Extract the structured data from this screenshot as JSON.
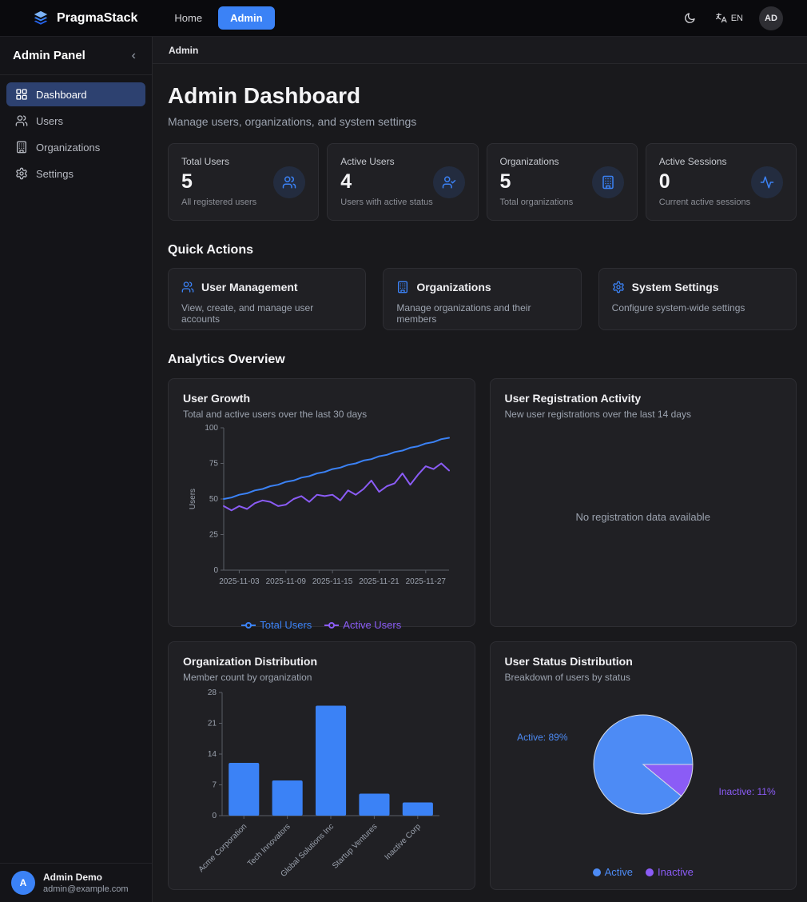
{
  "navbar": {
    "brand": "PragmaStack",
    "links": [
      {
        "label": "Home"
      },
      {
        "label": "Admin"
      }
    ],
    "lang": "EN",
    "avatar": "AD"
  },
  "sidebar": {
    "title": "Admin Panel",
    "collapse_icon": "‹",
    "items": [
      {
        "label": "Dashboard"
      },
      {
        "label": "Users"
      },
      {
        "label": "Organizations"
      },
      {
        "label": "Settings"
      }
    ],
    "user": {
      "initial": "A",
      "name": "Admin Demo",
      "email": "admin@example.com"
    }
  },
  "breadcrumb": "Admin",
  "page": {
    "title": "Admin Dashboard",
    "subtitle": "Manage users, organizations, and system settings"
  },
  "stats": [
    {
      "label": "Total Users",
      "value": "5",
      "desc": "All registered users",
      "icon": "users-icon"
    },
    {
      "label": "Active Users",
      "value": "4",
      "desc": "Users with active status",
      "icon": "user-check-icon"
    },
    {
      "label": "Organizations",
      "value": "5",
      "desc": "Total organizations",
      "icon": "building-icon"
    },
    {
      "label": "Active Sessions",
      "value": "0",
      "desc": "Current active sessions",
      "icon": "activity-icon"
    }
  ],
  "quick_actions": {
    "heading": "Quick Actions",
    "cards": [
      {
        "title": "User Management",
        "desc": "View, create, and manage user accounts",
        "icon": "users-icon"
      },
      {
        "title": "Organizations",
        "desc": "Manage organizations and their members",
        "icon": "building-icon"
      },
      {
        "title": "System Settings",
        "desc": "Configure system-wide settings",
        "icon": "gear-icon"
      }
    ]
  },
  "analytics": {
    "heading": "Analytics Overview",
    "cards": [
      {
        "title": "User Growth",
        "subtitle": "Total and active users over the last 30 days"
      },
      {
        "title": "User Registration Activity",
        "subtitle": "New user registrations over the last 14 days",
        "empty": "No registration data available"
      },
      {
        "title": "Organization Distribution",
        "subtitle": "Member count by organization"
      },
      {
        "title": "User Status Distribution",
        "subtitle": "Breakdown of users by status"
      }
    ]
  },
  "colors": {
    "accent": "#3b82f6",
    "purple": "#8b5cf6",
    "pie_blue": "#4d8bf5",
    "active_nav": "#2d4170"
  },
  "chart_data": [
    {
      "type": "line",
      "title": "User Growth",
      "xlabel": "",
      "ylabel": "Users",
      "ylim": [
        0,
        100
      ],
      "yticks": [
        0,
        25,
        50,
        75,
        100
      ],
      "x_tick_labels": [
        "2025-11-03",
        "2025-11-09",
        "2025-11-15",
        "2025-11-21",
        "2025-11-27"
      ],
      "x_tick_indices": [
        2,
        8,
        14,
        20,
        26
      ],
      "grid": false,
      "legend_position": "bottom",
      "series": [
        {
          "name": "Total Users",
          "color": "#3b82f6",
          "values": [
            50,
            51,
            53,
            54,
            56,
            57,
            59,
            60,
            62,
            63,
            65,
            66,
            68,
            69,
            71,
            72,
            74,
            75,
            77,
            78,
            80,
            81,
            83,
            84,
            86,
            87,
            89,
            90,
            92,
            93
          ]
        },
        {
          "name": "Active Users",
          "color": "#8b5cf6",
          "values": [
            45,
            42,
            45,
            43,
            47,
            49,
            48,
            45,
            46,
            50,
            52,
            48,
            53,
            52,
            53,
            49,
            56,
            53,
            57,
            63,
            55,
            59,
            61,
            68,
            60,
            67,
            73,
            71,
            75,
            70
          ]
        }
      ]
    },
    {
      "type": "bar",
      "title": "Organization Distribution",
      "categories": [
        "Acme Corporation",
        "Tech Innovators",
        "Global Solutions Inc",
        "Startup Ventures",
        "Inactive Corp"
      ],
      "values": [
        12,
        8,
        25,
        5,
        3
      ],
      "bar_color": "#3b82f6",
      "ylim": [
        0,
        28
      ],
      "yticks": [
        0,
        7,
        14,
        21,
        28
      ],
      "grid": false
    },
    {
      "type": "pie",
      "title": "User Status Distribution",
      "slices": [
        {
          "label": "Active",
          "pct": 89,
          "color": "#4d8bf5"
        },
        {
          "label": "Inactive",
          "pct": 11,
          "color": "#8b5cf6"
        }
      ],
      "legend_position": "bottom"
    }
  ]
}
